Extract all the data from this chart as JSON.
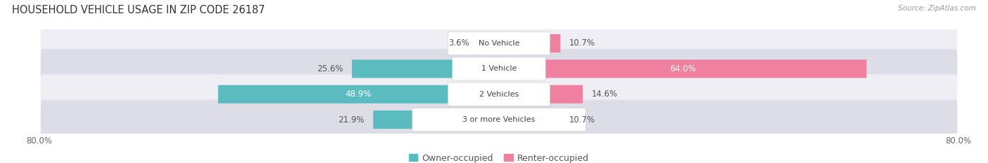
{
  "title": "HOUSEHOLD VEHICLE USAGE IN ZIP CODE 26187",
  "source": "Source: ZipAtlas.com",
  "categories": [
    "No Vehicle",
    "1 Vehicle",
    "2 Vehicles",
    "3 or more Vehicles"
  ],
  "owner_values": [
    3.6,
    25.6,
    48.9,
    21.9
  ],
  "renter_values": [
    10.7,
    64.0,
    14.6,
    10.7
  ],
  "owner_color": "#5bbcbf",
  "renter_color": "#f080a0",
  "axis_min": -80.0,
  "axis_max": 80.0,
  "title_fontsize": 10.5,
  "label_fontsize": 8.5,
  "tick_fontsize": 8.5,
  "legend_fontsize": 9,
  "bg_color": "#ffffff",
  "row_bg_even": "#eeeef4",
  "row_bg_odd": "#dddde8",
  "owner_label": "Owner-occupied",
  "renter_label": "Renter-occupied",
  "bar_height": 0.72,
  "row_sep_color": "#ffffff",
  "cat_label_color": "#444444",
  "value_label_dark": "#555555",
  "value_label_white": "#ffffff"
}
